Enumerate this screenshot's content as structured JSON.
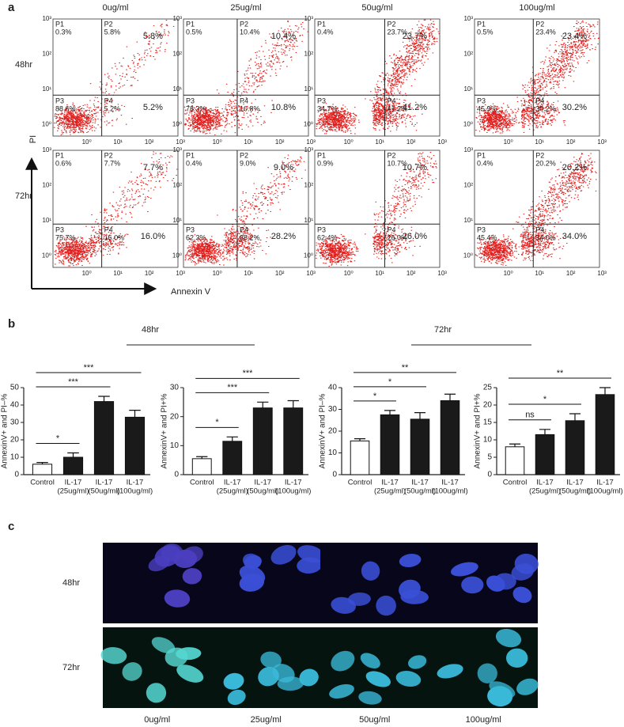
{
  "panel_a": {
    "label": "a",
    "columns": [
      "0ug/ml",
      "25ug/ml",
      "50ug/ml",
      "100ug/ml"
    ],
    "rows": [
      "48hr",
      "72hr"
    ],
    "y_axis": "PI",
    "x_axis": "Annexin V",
    "tick_labels": [
      "10⁰",
      "10¹",
      "10²",
      "10³"
    ],
    "plots": [
      {
        "quadrants": [
          [
            "P1",
            "0.3%"
          ],
          [
            "P2",
            "5.8%"
          ],
          [
            "P3",
            "88.6%"
          ],
          [
            "P4",
            "5.2%"
          ]
        ],
        "summary": [
          "5.8%",
          "5.2%"
        ]
      },
      {
        "quadrants": [
          [
            "P1",
            "0.5%"
          ],
          [
            "P2",
            "10.4%"
          ],
          [
            "P3",
            "78.3%"
          ],
          [
            "P4",
            "10.8%"
          ]
        ],
        "summary": [
          "10.4%",
          "10.8%"
        ]
      },
      {
        "quadrants": [
          [
            "P1",
            "0.4%"
          ],
          [
            "P2",
            "23.7%"
          ],
          [
            "P3",
            "34.7%"
          ],
          [
            "P4",
            "41.2%"
          ]
        ],
        "summary": [
          "23.7%",
          "41.2%"
        ]
      },
      {
        "quadrants": [
          [
            "P1",
            "0.5%"
          ],
          [
            "P2",
            "23.4%"
          ],
          [
            "P3",
            "45.9%"
          ],
          [
            "P4",
            "30.2%"
          ]
        ],
        "summary": [
          "23.4%",
          "30.2%"
        ]
      },
      {
        "quadrants": [
          [
            "P1",
            "0.6%"
          ],
          [
            "P2",
            "7.7%"
          ],
          [
            "P3",
            "75.7%"
          ],
          [
            "P4",
            "16.0%"
          ]
        ],
        "summary": [
          "7.7%",
          "16.0%"
        ]
      },
      {
        "quadrants": [
          [
            "P1",
            "0.4%"
          ],
          [
            "P2",
            "9.0%"
          ],
          [
            "P3",
            "62.3%"
          ],
          [
            "P4",
            "28.2%"
          ]
        ],
        "summary": [
          "9.0%",
          "28.2%"
        ]
      },
      {
        "quadrants": [
          [
            "P1",
            "0.9%"
          ],
          [
            "P2",
            "10.7%"
          ],
          [
            "P3",
            "62.4%"
          ],
          [
            "P4",
            "26.0%"
          ]
        ],
        "summary": [
          "10.7%",
          "26.0%"
        ]
      },
      {
        "quadrants": [
          [
            "P1",
            "0.4%"
          ],
          [
            "P2",
            "20.2%"
          ],
          [
            "P3",
            "45.4%"
          ],
          [
            "P4",
            "34.0%"
          ]
        ],
        "summary": [
          "20.2%",
          "34.0%"
        ]
      }
    ]
  },
  "panel_b": {
    "label": "b",
    "groups": [
      "48hr",
      "72hr"
    ]
  },
  "chart_data": [
    {
      "type": "bar",
      "y_label": "AnnexinV+ and PI–%",
      "categories": [
        [
          "Control"
        ],
        [
          "IL-17",
          "(25ug/ml)"
        ],
        [
          "IL-17",
          "(50ug/ml)"
        ],
        [
          "IL-17",
          "(100ug/ml)"
        ]
      ],
      "values": [
        6,
        10,
        42,
        33
      ],
      "errors": [
        1,
        2.5,
        3,
        4
      ],
      "colors": [
        "#ffffff",
        "#1a1a1a",
        "#1a1a1a",
        "#1a1a1a"
      ],
      "ylim": [
        0,
        50
      ],
      "yticks": [
        0,
        10,
        20,
        30,
        40,
        50
      ],
      "significance": [
        {
          "from": 0,
          "to": 1,
          "label": "*"
        },
        {
          "from": 0,
          "to": 2,
          "label": "***"
        },
        {
          "from": 0,
          "to": 3,
          "label": "***"
        }
      ]
    },
    {
      "type": "bar",
      "y_label": "AnnexinV+ and PI+%",
      "categories": [
        [
          "Control"
        ],
        [
          "IL-17",
          "(25ug/ml)"
        ],
        [
          "IL-17",
          "(50ug/ml)"
        ],
        [
          "IL-17",
          "(100ug/ml)"
        ]
      ],
      "values": [
        5.5,
        11.5,
        23,
        23
      ],
      "errors": [
        0.7,
        1.5,
        2,
        2.5
      ],
      "colors": [
        "#ffffff",
        "#1a1a1a",
        "#1a1a1a",
        "#1a1a1a"
      ],
      "ylim": [
        0,
        30
      ],
      "yticks": [
        0,
        10,
        20,
        30
      ],
      "significance": [
        {
          "from": 0,
          "to": 1,
          "label": "*"
        },
        {
          "from": 0,
          "to": 2,
          "label": "***"
        },
        {
          "from": 0,
          "to": 3,
          "label": "***"
        }
      ]
    },
    {
      "type": "bar",
      "y_label": "AnnexinV+ and PI–%",
      "categories": [
        [
          "Control"
        ],
        [
          "IL-17",
          "(25ug/ml)"
        ],
        [
          "IL-17",
          "(50ug/ml)"
        ],
        [
          "IL-17",
          "(100ug/ml)"
        ]
      ],
      "values": [
        15.5,
        27.5,
        25.5,
        34
      ],
      "errors": [
        1,
        2,
        3,
        3
      ],
      "colors": [
        "#ffffff",
        "#1a1a1a",
        "#1a1a1a",
        "#1a1a1a"
      ],
      "ylim": [
        0,
        40
      ],
      "yticks": [
        0,
        10,
        20,
        30,
        40
      ],
      "significance": [
        {
          "from": 0,
          "to": 1,
          "label": "*"
        },
        {
          "from": 0,
          "to": 2,
          "label": "*"
        },
        {
          "from": 0,
          "to": 3,
          "label": "**"
        }
      ]
    },
    {
      "type": "bar",
      "y_label": "AnnexinV+ and PI+%",
      "categories": [
        [
          "Control"
        ],
        [
          "IL-17",
          "(25ug/ml)"
        ],
        [
          "IL-17",
          "(50ug/ml)"
        ],
        [
          "IL-17",
          "(100ug/ml)"
        ]
      ],
      "values": [
        8,
        11.5,
        15.5,
        23
      ],
      "errors": [
        0.8,
        1.5,
        2,
        2
      ],
      "colors": [
        "#ffffff",
        "#1a1a1a",
        "#1a1a1a",
        "#1a1a1a"
      ],
      "ylim": [
        0,
        25
      ],
      "yticks": [
        0,
        5,
        10,
        15,
        20,
        25
      ],
      "significance": [
        {
          "from": 0,
          "to": 1,
          "label": "ns"
        },
        {
          "from": 0,
          "to": 2,
          "label": "*"
        },
        {
          "from": 0,
          "to": 3,
          "label": "**"
        }
      ]
    }
  ],
  "panel_c": {
    "label": "c",
    "rows": [
      "48hr",
      "72hr"
    ],
    "columns": [
      "0ug/ml",
      "25ug/ml",
      "50ug/ml",
      "100ug/ml"
    ]
  }
}
